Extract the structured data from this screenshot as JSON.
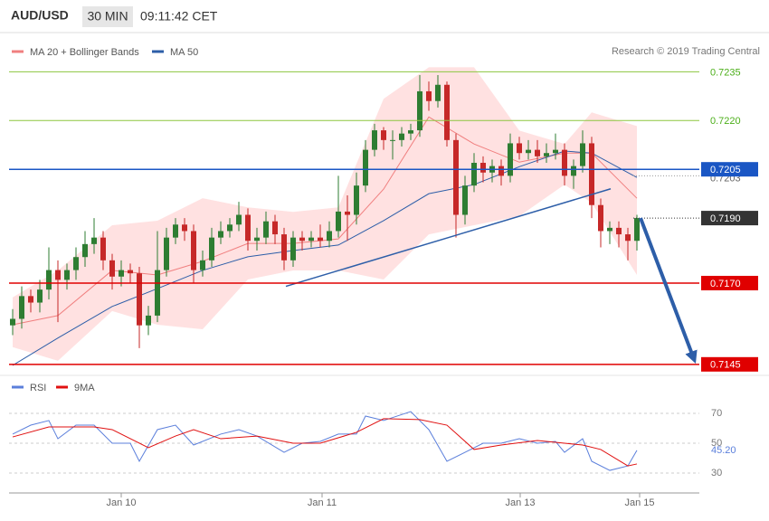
{
  "header": {
    "symbol": "AUD/USD",
    "interval": "30 MIN",
    "time": "09:11:42 CET"
  },
  "chart_data": [
    {
      "type": "candlestick",
      "credit": "Research © 2019 Trading Central",
      "xlim": [
        -0.4,
        75.9
      ],
      "ylim": [
        0.7143,
        0.7239
      ],
      "candles": {
        "up_color": "#2e7d32",
        "down_color": "#c62828",
        "open": [
          0.7157,
          0.7159,
          0.7166,
          0.7164,
          0.7168,
          0.7174,
          0.7171,
          0.7174,
          0.7178,
          0.7182,
          0.7184,
          0.7177,
          0.7172,
          0.7174,
          0.7173,
          0.7157,
          0.716,
          0.7174,
          0.7184,
          0.7188,
          0.7186,
          0.7174,
          0.7177,
          0.7184,
          0.7186,
          0.7188,
          0.7191,
          0.7183,
          0.7184,
          0.7189,
          0.7185,
          0.7177,
          0.7184,
          0.7183,
          0.7184,
          0.7183,
          0.7186,
          0.7192,
          0.7191,
          0.72,
          0.7211,
          0.7217,
          0.7214,
          0.7214,
          0.7216,
          0.7217,
          0.7229,
          0.7226,
          0.7231,
          0.7214,
          0.7191,
          0.72,
          0.7207,
          0.7204,
          0.7206,
          0.7203,
          0.7213,
          0.721,
          0.7211,
          0.7209,
          0.721,
          0.7211,
          0.7203,
          0.7206,
          0.7213,
          0.7194,
          0.7186,
          0.7187,
          0.7185,
          0.7183
        ],
        "high": [
          0.7162,
          0.7169,
          0.7168,
          0.7171,
          0.7181,
          0.7177,
          0.7176,
          0.7181,
          0.7186,
          0.719,
          0.7186,
          0.7179,
          0.7177,
          0.7176,
          0.7175,
          0.7163,
          0.7186,
          0.7187,
          0.719,
          0.719,
          0.7188,
          0.718,
          0.7187,
          0.7189,
          0.719,
          0.7195,
          0.7193,
          0.7187,
          0.7192,
          0.7191,
          0.7187,
          0.7186,
          0.7186,
          0.7186,
          0.7188,
          0.7189,
          0.7203,
          0.7197,
          0.7204,
          0.7214,
          0.7219,
          0.7218,
          0.7217,
          0.7218,
          0.7219,
          0.7234,
          0.7232,
          0.7234,
          0.7232,
          0.7216,
          0.7203,
          0.721,
          0.7209,
          0.7208,
          0.7208,
          0.7216,
          0.7215,
          0.7214,
          0.7214,
          0.7213,
          0.7216,
          0.7213,
          0.7208,
          0.7217,
          0.7215,
          0.7196,
          0.7189,
          0.7189,
          0.7187,
          0.7191
        ],
        "low": [
          0.7154,
          0.7156,
          0.7161,
          0.7161,
          0.7165,
          0.7158,
          0.7168,
          0.7171,
          0.7175,
          0.7179,
          0.7174,
          0.7168,
          0.7169,
          0.717,
          0.715,
          0.7154,
          0.7158,
          0.7172,
          0.7182,
          0.7183,
          0.717,
          0.7172,
          0.7175,
          0.7182,
          0.7184,
          0.7186,
          0.718,
          0.718,
          0.7182,
          0.7182,
          0.7174,
          0.7175,
          0.718,
          0.7181,
          0.7181,
          0.7181,
          0.7184,
          0.7183,
          0.7188,
          0.7198,
          0.7209,
          0.7211,
          0.7208,
          0.7212,
          0.7214,
          0.7215,
          0.7223,
          0.7224,
          0.7212,
          0.7184,
          0.7188,
          0.7198,
          0.7201,
          0.7201,
          0.72,
          0.7201,
          0.7208,
          0.7208,
          0.7207,
          0.7207,
          0.7208,
          0.72,
          0.7199,
          0.7204,
          0.719,
          0.7181,
          0.7182,
          0.7181,
          0.7177,
          0.718
        ],
        "close": [
          0.7159,
          0.7166,
          0.7164,
          0.7168,
          0.7174,
          0.7171,
          0.7174,
          0.7178,
          0.7182,
          0.7184,
          0.7177,
          0.7172,
          0.7174,
          0.7173,
          0.7157,
          0.716,
          0.7174,
          0.7184,
          0.7188,
          0.7186,
          0.7174,
          0.7177,
          0.7184,
          0.7186,
          0.7188,
          0.7191,
          0.7183,
          0.7184,
          0.7189,
          0.7185,
          0.7177,
          0.7184,
          0.7183,
          0.7184,
          0.7183,
          0.7186,
          0.7192,
          0.7191,
          0.72,
          0.7211,
          0.7217,
          0.7214,
          0.7214,
          0.7216,
          0.7217,
          0.7229,
          0.7226,
          0.7231,
          0.7214,
          0.7191,
          0.72,
          0.7207,
          0.7204,
          0.7206,
          0.7203,
          0.7213,
          0.721,
          0.7211,
          0.7209,
          0.721,
          0.7211,
          0.7203,
          0.7206,
          0.7213,
          0.7194,
          0.7186,
          0.7187,
          0.7185,
          0.7183,
          0.719
        ]
      },
      "series": [
        {
          "name": "MA 20 + Bollinger Bands",
          "color": "#f07f7f",
          "band_color": "#ffc8c8",
          "x": [
            0,
            5,
            11,
            16,
            21,
            26,
            31,
            36,
            41,
            46,
            51,
            56,
            61,
            64,
            69
          ],
          "values": [
            0.71572,
            0.716,
            0.71739,
            0.71725,
            0.71767,
            0.71822,
            0.71822,
            0.71836,
            0.71989,
            0.72211,
            0.72128,
            0.72072,
            0.721,
            0.721,
            0.71961
          ],
          "upper": [
            0.71656,
            0.71739,
            0.71878,
            0.71892,
            0.71961,
            0.71933,
            0.71919,
            0.71933,
            0.72267,
            0.72364,
            0.72364,
            0.72169,
            0.72128,
            0.72225,
            0.72183
          ],
          "lower": [
            0.71503,
            0.71461,
            0.71614,
            0.71572,
            0.71558,
            0.71711,
            0.71739,
            0.71739,
            0.71711,
            0.7185,
            0.71878,
            0.71906,
            0.72003,
            0.71947,
            0.71725
          ]
        },
        {
          "name": "MA 50",
          "color": "#2d5ea8",
          "x": [
            0,
            5,
            11,
            16,
            21,
            26,
            31,
            36,
            41,
            46,
            51,
            56,
            61,
            64,
            69
          ],
          "values": [
            0.71447,
            0.71531,
            0.71628,
            0.71683,
            0.71739,
            0.71781,
            0.718,
            0.71817,
            0.71892,
            0.71975,
            0.72003,
            0.72058,
            0.72106,
            0.721,
            0.72025
          ]
        }
      ],
      "trendline": {
        "color": "#2d5ea8",
        "x": [
          30.2,
          66.1
        ],
        "values": [
          0.7169,
          0.7199
        ]
      },
      "projection": {
        "color": "#2d5ea8",
        "x": [
          69.4,
          75.6
        ],
        "values": [
          0.719,
          0.7145
        ]
      },
      "levels": [
        {
          "value": 0.7235,
          "color": "#8dc63f",
          "text_color": "#4caf1a",
          "style": "solid",
          "label_style": "text"
        },
        {
          "value": 0.722,
          "label": "0.7220",
          "color": "#8dc63f",
          "text_color": "#4caf1a",
          "style": "solid",
          "label_style": "text"
        },
        {
          "value": 0.7203,
          "color": "#999999",
          "text_color": "#666666",
          "style": "dotted",
          "label_style": "text"
        },
        {
          "value": 0.7205,
          "color": "#1a56c4",
          "text_color": "#ffffff",
          "style": "solid",
          "label_style": "box"
        },
        {
          "value": 0.719,
          "label": "0.7190",
          "color": "#333333",
          "text_color": "#ffffff",
          "style": "dotted",
          "label_style": "box"
        },
        {
          "value": 0.717,
          "label": "0.7170",
          "color": "#e00000",
          "text_color": "#ffffff",
          "style": "solid",
          "label_style": "box"
        },
        {
          "value": 0.7145,
          "color": "#e00000",
          "text_color": "#ffffff",
          "style": "solid",
          "label_style": "box"
        }
      ]
    },
    {
      "type": "line",
      "xlim": [
        -0.4,
        75.9
      ],
      "ylim": [
        19.7,
        80.3
      ],
      "yticks": [
        30,
        50,
        70
      ],
      "grid": true,
      "xticks": [
        {
          "value": 12,
          "label": "Jan 10"
        },
        {
          "value": 34.2,
          "label": "Jan 11"
        },
        {
          "value": 56.1,
          "label": "Jan 13"
        },
        {
          "value": 69.3,
          "label": "Jan 15"
        }
      ],
      "series": [
        {
          "name": "RSI",
          "color": "#5b7fdb",
          "x": [
            0,
            2,
            4,
            5,
            7,
            9,
            11,
            13,
            14,
            16,
            18,
            20,
            23,
            25,
            27,
            30,
            32,
            34,
            36,
            38,
            39,
            41,
            44,
            46,
            48,
            50,
            52,
            54,
            56,
            58,
            60,
            61,
            63,
            64,
            66,
            68,
            69
          ],
          "values": [
            56.1,
            62.1,
            65.2,
            53.0,
            62.1,
            62.1,
            50.0,
            50.0,
            37.9,
            59.1,
            62.1,
            48.8,
            56.1,
            59.1,
            54.8,
            43.9,
            50.0,
            51.2,
            56.1,
            56.1,
            68.2,
            65.2,
            71.2,
            59.1,
            37.9,
            43.9,
            50.0,
            50.0,
            53.0,
            50.0,
            51.2,
            43.9,
            53.0,
            37.9,
            31.8,
            34.8,
            45.2
          ]
        },
        {
          "name": "9MA",
          "color": "#e01010",
          "x": [
            0,
            4,
            9,
            11,
            15,
            18,
            20,
            23,
            27,
            31,
            34,
            38,
            41,
            45,
            48,
            51,
            54,
            58,
            61,
            63,
            65,
            68,
            69
          ],
          "values": [
            54.2,
            60.9,
            60.9,
            59.1,
            47.0,
            54.8,
            59.1,
            53.0,
            54.8,
            50.0,
            50.0,
            57.3,
            66.4,
            65.8,
            62.1,
            45.8,
            48.8,
            51.8,
            50.0,
            48.8,
            45.8,
            34.8,
            36.1
          ]
        }
      ],
      "last_value": {
        "value": 45.2,
        "label": "45.20",
        "color": "#5b7fdb"
      }
    }
  ]
}
